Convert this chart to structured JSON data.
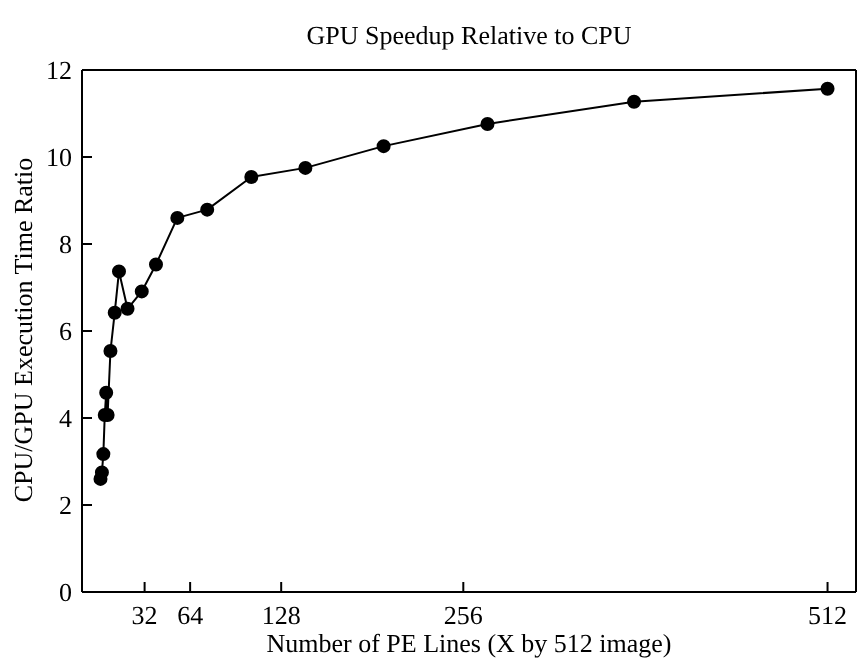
{
  "chart_data": {
    "type": "line",
    "title": "GPU Speedup Relative to CPU",
    "xlabel": "Number of PE Lines (X by 512 image)",
    "ylabel": "CPU/GPU Execution Time Ratio",
    "x": [
      1,
      2,
      3,
      4,
      5,
      6,
      8,
      11,
      14,
      20,
      30,
      40,
      55,
      76,
      107,
      145,
      200,
      273,
      376,
      512
    ],
    "series": [
      {
        "color": "#000000",
        "values": [
          2.6,
          2.75,
          3.17,
          4.07,
          4.58,
          4.07,
          5.54,
          6.42,
          7.37,
          6.51,
          6.91,
          7.53,
          8.6,
          8.79,
          9.54,
          9.75,
          10.25,
          10.76,
          11.27,
          11.57
        ]
      }
    ],
    "xlim": [
      -12,
      532
    ],
    "xticks": [
      32,
      64,
      128,
      256,
      512
    ],
    "ylim": [
      0,
      12
    ],
    "yticks": [
      0,
      2,
      4,
      6,
      8,
      10,
      12
    ],
    "marker": "circle",
    "grid": false,
    "legend": false
  }
}
